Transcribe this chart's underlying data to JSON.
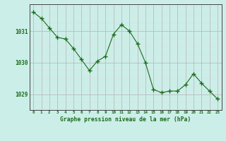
{
  "x": [
    0,
    1,
    2,
    3,
    4,
    5,
    6,
    7,
    8,
    9,
    10,
    11,
    12,
    13,
    14,
    15,
    16,
    17,
    18,
    19,
    20,
    21,
    22,
    23
  ],
  "y": [
    1031.6,
    1031.4,
    1031.1,
    1030.8,
    1030.75,
    1030.45,
    1030.1,
    1029.75,
    1030.05,
    1030.2,
    1030.9,
    1031.2,
    1031.0,
    1030.6,
    1030.0,
    1029.15,
    1029.05,
    1029.1,
    1029.1,
    1029.3,
    1029.65,
    1029.35,
    1029.1,
    1028.85
  ],
  "line_color": "#1a6b1a",
  "bg_color": "#cceee8",
  "grid_color_major": "#bbbbbb",
  "grid_color_minor": "#dddddd",
  "xlabel": "Graphe pression niveau de la mer (hPa)",
  "xlabel_color": "#1a6b1a",
  "tick_color": "#1a6b1a",
  "ylim": [
    1028.5,
    1031.85
  ],
  "yticks": [
    1029,
    1030,
    1031
  ],
  "xlim": [
    -0.5,
    23.5
  ],
  "xticks": [
    0,
    1,
    2,
    3,
    4,
    5,
    6,
    7,
    8,
    9,
    10,
    11,
    12,
    13,
    14,
    15,
    16,
    17,
    18,
    19,
    20,
    21,
    22,
    23
  ]
}
